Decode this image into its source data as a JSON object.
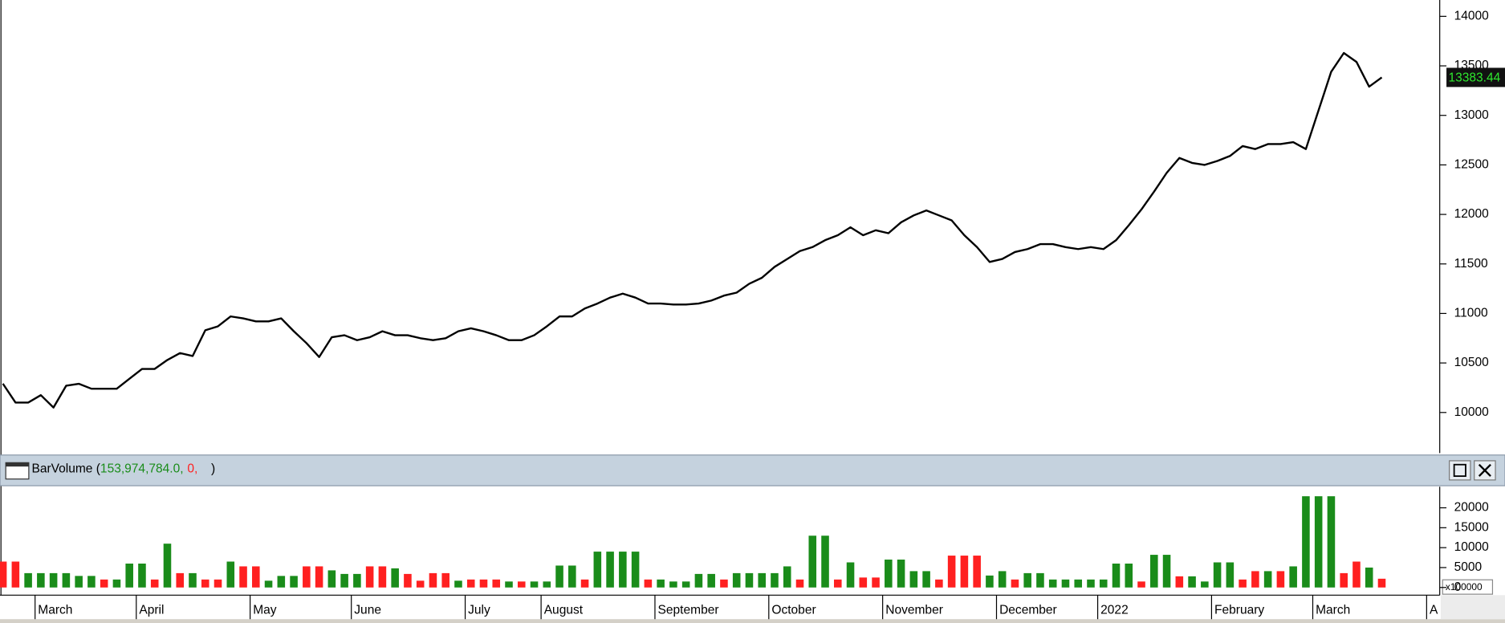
{
  "chart_data": [
    {
      "type": "line",
      "series": [
        {
          "name": "Close",
          "color": "#000000",
          "values": [
            10291,
            10100,
            10100,
            10175,
            10050,
            10270,
            10290,
            10240,
            10240,
            10240,
            10340,
            10440,
            10440,
            10530,
            10600,
            10570,
            10830,
            10870,
            10970,
            10950,
            10920,
            10920,
            10950,
            10820,
            10700,
            10560,
            10760,
            10780,
            10730,
            10760,
            10820,
            10780,
            10780,
            10750,
            10730,
            10750,
            10820,
            10850,
            10820,
            10780,
            10730,
            10730,
            10780,
            10870,
            10970,
            10970,
            11050,
            11100,
            11160,
            11200,
            11160,
            11100,
            11100,
            11090,
            11090,
            11100,
            11130,
            11180,
            11210,
            11300,
            11360,
            11470,
            11550,
            11630,
            11670,
            11740,
            11790,
            11870,
            11790,
            11840,
            11810,
            11920,
            11990,
            12040,
            11990,
            11940,
            11790,
            11670,
            11520,
            11550,
            11620,
            11650,
            11700,
            11700,
            11670,
            11650,
            11670,
            11650,
            11740,
            11890,
            12050,
            12230,
            12420,
            12570,
            12520,
            12500,
            12540,
            12590,
            12690,
            12660,
            12710,
            12710,
            12730,
            12660,
            13050,
            13440,
            13630,
            13540,
            13290,
            13383.44,
            null,
            null,
            null,
            null
          ]
        }
      ],
      "ylim": [
        9590,
        14165
      ],
      "yticks": [
        10000,
        10500,
        11000,
        11500,
        12000,
        12500,
        13000,
        13500,
        14000
      ]
    },
    {
      "type": "bar",
      "header": {
        "name": "BarVolume (",
        "value1": "153,974,784.0,",
        "value2": "0,",
        "close": ")"
      },
      "unit_label": "x100000",
      "categories": [
        null,
        null,
        null,
        "March",
        null,
        null,
        null,
        null,
        null,
        null,
        null,
        "April",
        null,
        null,
        null,
        null,
        null,
        null,
        null,
        null,
        "May",
        null,
        null,
        null,
        null,
        null,
        null,
        null,
        "June",
        null,
        null,
        null,
        null,
        null,
        null,
        null,
        null,
        "July",
        null,
        null,
        null,
        null,
        null,
        "August",
        null,
        null,
        null,
        null,
        null,
        null,
        null,
        null,
        "September",
        null,
        null,
        null,
        null,
        null,
        null,
        null,
        null,
        "October",
        null,
        null,
        null,
        null,
        null,
        null,
        null,
        null,
        "November",
        null,
        null,
        null,
        null,
        null,
        null,
        null,
        null,
        "December",
        null,
        null,
        null,
        null,
        null,
        null,
        null,
        "2022",
        null,
        null,
        null,
        null,
        null,
        null,
        null,
        null,
        "February",
        null,
        null,
        null,
        null,
        null,
        null,
        null,
        "March",
        null,
        null,
        null,
        null,
        null,
        null,
        null,
        null,
        "A"
      ],
      "values": [
        6500,
        6500,
        3600,
        3600,
        3600,
        3600,
        2900,
        2900,
        2000,
        2000,
        6000,
        6000,
        2000,
        11000,
        3600,
        3600,
        2000,
        2000,
        6500,
        5300,
        5300,
        1700,
        2900,
        2900,
        5300,
        5300,
        4300,
        3400,
        3400,
        5300,
        5300,
        4800,
        3400,
        1700,
        3600,
        3600,
        1700,
        2000,
        2000,
        2000,
        1500,
        1500,
        1500,
        1500,
        5500,
        5500,
        2000,
        9000,
        9000,
        9000,
        9000,
        2000,
        2000,
        1500,
        1500,
        3400,
        3400,
        2000,
        3600,
        3600,
        3600,
        3600,
        5300,
        2000,
        13000,
        13000,
        2000,
        6300,
        2500,
        2500,
        7000,
        7000,
        4100,
        4100,
        2000,
        8000,
        8000,
        8000,
        3000,
        4100,
        2000,
        3600,
        3600,
        2000,
        2000,
        2000,
        2000,
        2000,
        6000,
        6000,
        1500,
        8200,
        8200,
        2800,
        2800,
        1500,
        6300,
        6300,
        2000,
        4100,
        4100,
        4100,
        5300,
        22900,
        22900,
        22900,
        3600,
        6500,
        5000,
        2200,
        null,
        null,
        null,
        null
      ],
      "colors": [
        "#ff2020",
        "#ff2020",
        "#1a8c1a",
        "#1a8c1a",
        "#1a8c1a",
        "#1a8c1a",
        "#1a8c1a",
        "#1a8c1a",
        "#ff2020",
        "#1a8c1a",
        "#1a8c1a",
        "#1a8c1a",
        "#ff2020",
        "#1a8c1a",
        "#ff2020",
        "#1a8c1a",
        "#ff2020",
        "#ff2020",
        "#1a8c1a",
        "#ff2020",
        "#ff2020",
        "#1a8c1a",
        "#1a8c1a",
        "#1a8c1a",
        "#ff2020",
        "#ff2020",
        "#1a8c1a",
        "#1a8c1a",
        "#1a8c1a",
        "#ff2020",
        "#ff2020",
        "#1a8c1a",
        "#ff2020",
        "#ff2020",
        "#ff2020",
        "#ff2020",
        "#1a8c1a",
        "#ff2020",
        "#ff2020",
        "#ff2020",
        "#1a8c1a",
        "#ff2020",
        "#1a8c1a",
        "#1a8c1a",
        "#1a8c1a",
        "#1a8c1a",
        "#ff2020",
        "#1a8c1a",
        "#1a8c1a",
        "#1a8c1a",
        "#1a8c1a",
        "#ff2020",
        "#1a8c1a",
        "#1a8c1a",
        "#1a8c1a",
        "#1a8c1a",
        "#1a8c1a",
        "#ff2020",
        "#1a8c1a",
        "#1a8c1a",
        "#1a8c1a",
        "#1a8c1a",
        "#1a8c1a",
        "#ff2020",
        "#1a8c1a",
        "#1a8c1a",
        "#ff2020",
        "#1a8c1a",
        "#ff2020",
        "#ff2020",
        "#1a8c1a",
        "#1a8c1a",
        "#1a8c1a",
        "#1a8c1a",
        "#ff2020",
        "#ff2020",
        "#ff2020",
        "#ff2020",
        "#1a8c1a",
        "#1a8c1a",
        "#ff2020",
        "#1a8c1a",
        "#1a8c1a",
        "#1a8c1a",
        "#1a8c1a",
        "#1a8c1a",
        "#1a8c1a",
        "#1a8c1a",
        "#1a8c1a",
        "#1a8c1a",
        "#ff2020",
        "#1a8c1a",
        "#1a8c1a",
        "#ff2020",
        "#1a8c1a",
        "#1a8c1a",
        "#1a8c1a",
        "#1a8c1a",
        "#ff2020",
        "#ff2020",
        "#1a8c1a",
        "#ff2020",
        "#1a8c1a",
        "#1a8c1a",
        "#1a8c1a",
        "#1a8c1a",
        "#ff2020",
        "#ff2020",
        "#1a8c1a",
        "#ff2020",
        "#ff2020",
        "#ff2020",
        "#ff2020",
        "#ff2020"
      ],
      "ylim": [
        0,
        25300
      ],
      "yticks": [
        0,
        5000,
        10000,
        15000,
        20000
      ]
    }
  ]
}
